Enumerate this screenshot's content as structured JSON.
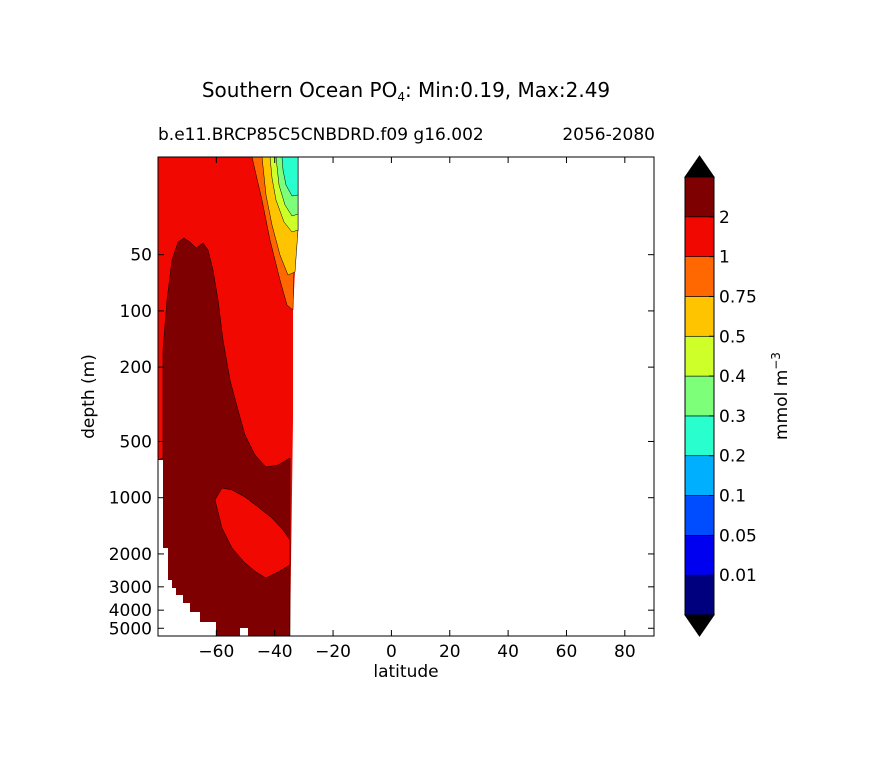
{
  "figure": {
    "title_prefix": "Southern Ocean PO",
    "title_sub": "4",
    "title_suffix": ": Min:0.19, Max:2.49",
    "subtitle_left": "b.e11.BRCP85C5CNBDRD.f09 g16.002",
    "subtitle_right": "2056-2080"
  },
  "chart_data": {
    "type": "heatmap",
    "xlabel": "latitude",
    "ylabel": "depth (m)",
    "xlim": [
      -80,
      90
    ],
    "ylim": [
      5500,
      15
    ],
    "yscale": "log",
    "x_ticks": [
      -60,
      -40,
      -20,
      0,
      20,
      40,
      60,
      80
    ],
    "x_tick_labels": [
      "−60",
      "−40",
      "−20",
      "0",
      "20",
      "40",
      "60",
      "80"
    ],
    "y_ticks": [
      50,
      100,
      200,
      500,
      1000,
      2000,
      3000,
      4000,
      5000
    ],
    "y_tick_labels": [
      "50",
      "100",
      "200",
      "500",
      "1000",
      "2000",
      "3000",
      "4000",
      "5000"
    ],
    "data_extent_lat": [
      -80,
      -34
    ],
    "colorbar": {
      "label": "mmol m",
      "label_sup": "−3",
      "levels": [
        0.01,
        0.05,
        0.1,
        0.2,
        0.3,
        0.4,
        0.5,
        0.75,
        1,
        2
      ],
      "tick_labels": [
        "0.01",
        "0.05",
        "0.1",
        "0.2",
        "0.3",
        "0.4",
        "0.5",
        "0.75",
        "1",
        "2"
      ],
      "colors": [
        "#00007f",
        "#0000f1",
        "#004cff",
        "#00b0ff",
        "#29ffce",
        "#7dff7a",
        "#ceff29",
        "#ffc400",
        "#ff6800",
        "#f10800",
        "#7f0000"
      ],
      "extend": "both",
      "under_color": "#000000",
      "over_color": "#000000"
    }
  }
}
